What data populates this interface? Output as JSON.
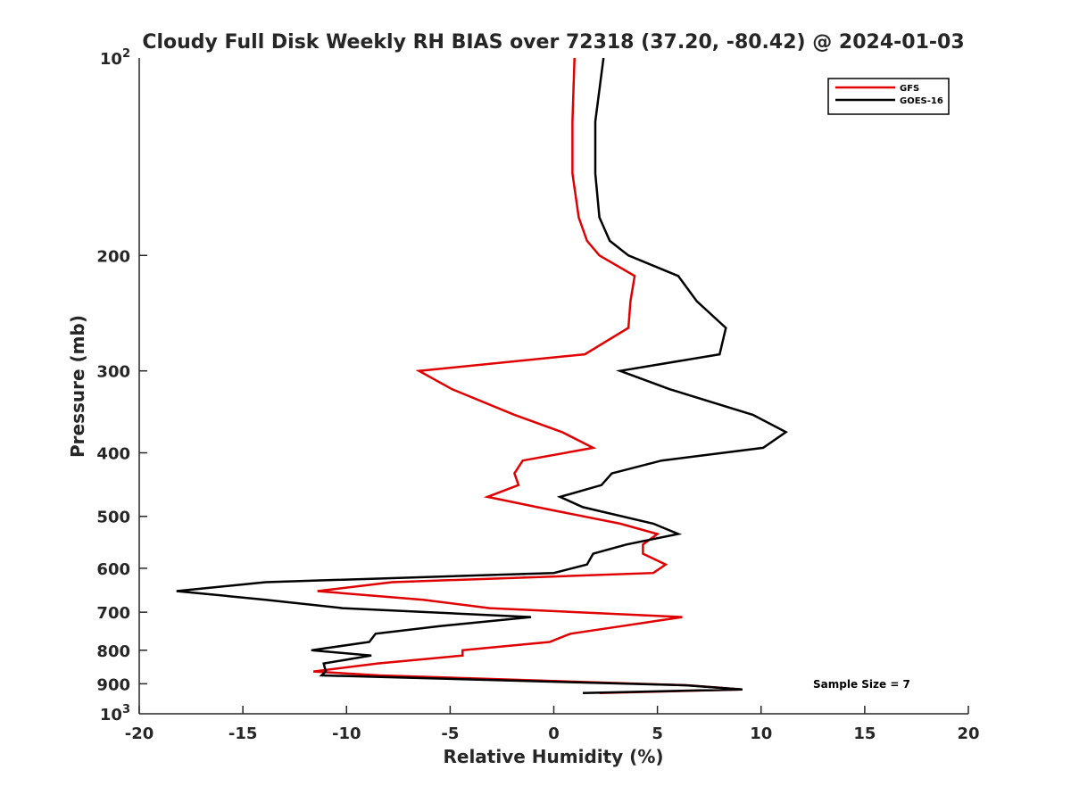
{
  "chart_data": {
    "type": "line",
    "title": "Cloudy Full Disk Weekly RH BIAS over 72318 (37.20, -80.42) @ 2024-01-03",
    "xlabel": "Relative Humidity (%)",
    "ylabel": "Pressure (mb)",
    "xlim": [
      -20,
      20
    ],
    "ylim": [
      100,
      1000
    ],
    "yscale": "log",
    "y_reversed": true,
    "grid": false,
    "legend_position": "top-right",
    "x_ticks": [
      -20,
      -15,
      -10,
      -5,
      0,
      5,
      10,
      15,
      20
    ],
    "x_tick_labels": [
      "-20",
      "-15",
      "-10",
      "-5",
      "0",
      "5",
      "10",
      "15",
      "20"
    ],
    "y_ticks": [
      200,
      300,
      400,
      500,
      600,
      700,
      800,
      900
    ],
    "y_tick_labels": [
      "200",
      "300",
      "400",
      "500",
      "600",
      "700",
      "800",
      "900"
    ],
    "y_top_label": {
      "base": "10",
      "exp": "2"
    },
    "y_bottom_label": {
      "base": "10",
      "exp": "3"
    },
    "annotation": "Sample Size = 7",
    "series": [
      {
        "name": "GFS",
        "color": "#e00000",
        "points": [
          [
            1.0,
            100
          ],
          [
            0.9,
            125
          ],
          [
            0.9,
            150
          ],
          [
            1.2,
            175
          ],
          [
            1.6,
            190
          ],
          [
            2.2,
            200
          ],
          [
            3.9,
            215
          ],
          [
            3.7,
            235
          ],
          [
            3.6,
            258
          ],
          [
            1.5,
            283
          ],
          [
            -6.5,
            300
          ],
          [
            -4.9,
            320
          ],
          [
            -1.9,
            350
          ],
          [
            0.4,
            372
          ],
          [
            1.9,
            393
          ],
          [
            -1.5,
            411
          ],
          [
            -1.9,
            430
          ],
          [
            -1.7,
            448
          ],
          [
            -3.2,
            467
          ],
          [
            -0.8,
            484
          ],
          [
            3.2,
            513
          ],
          [
            5.0,
            532
          ],
          [
            4.3,
            552
          ],
          [
            4.3,
            570
          ],
          [
            5.4,
            592
          ],
          [
            4.8,
            610
          ],
          [
            -7.8,
            630
          ],
          [
            -11.4,
            650
          ],
          [
            -6.3,
            670
          ],
          [
            -3.1,
            690
          ],
          [
            6.2,
            712
          ],
          [
            3.3,
            735
          ],
          [
            0.8,
            755
          ],
          [
            -0.2,
            777
          ],
          [
            -4.4,
            800
          ],
          [
            -4.4,
            815
          ],
          [
            -8.5,
            838
          ],
          [
            -11.6,
            862
          ],
          [
            -8.4,
            874
          ],
          [
            6.5,
            905
          ],
          [
            9.1,
            918
          ],
          [
            2.2,
            930
          ]
        ]
      },
      {
        "name": "GOES-16",
        "color": "#000000",
        "points": [
          [
            2.4,
            100
          ],
          [
            2.0,
            125
          ],
          [
            2.0,
            150
          ],
          [
            2.2,
            175
          ],
          [
            2.7,
            190
          ],
          [
            3.6,
            200
          ],
          [
            6.0,
            215
          ],
          [
            6.9,
            235
          ],
          [
            8.3,
            258
          ],
          [
            8.0,
            283
          ],
          [
            3.2,
            300
          ],
          [
            5.6,
            320
          ],
          [
            9.6,
            350
          ],
          [
            11.2,
            372
          ],
          [
            10.1,
            393
          ],
          [
            5.2,
            411
          ],
          [
            2.8,
            430
          ],
          [
            2.3,
            448
          ],
          [
            0.3,
            467
          ],
          [
            1.4,
            484
          ],
          [
            4.8,
            513
          ],
          [
            6.0,
            532
          ],
          [
            3.5,
            552
          ],
          [
            1.9,
            570
          ],
          [
            1.6,
            592
          ],
          [
            0.0,
            610
          ],
          [
            -13.9,
            630
          ],
          [
            -18.2,
            650
          ],
          [
            -13.9,
            670
          ],
          [
            -10.2,
            690
          ],
          [
            -1.1,
            712
          ],
          [
            -5.5,
            735
          ],
          [
            -8.6,
            755
          ],
          [
            -8.9,
            777
          ],
          [
            -11.7,
            800
          ],
          [
            -8.8,
            815
          ],
          [
            -11.1,
            838
          ],
          [
            -11.0,
            862
          ],
          [
            -11.2,
            874
          ],
          [
            6.4,
            905
          ],
          [
            9.1,
            918
          ],
          [
            1.4,
            930
          ]
        ]
      }
    ]
  }
}
